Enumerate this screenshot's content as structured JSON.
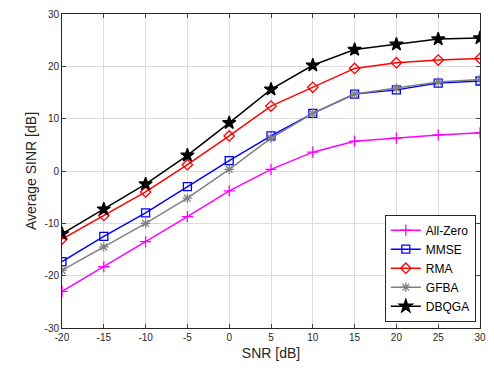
{
  "chart_data": {
    "type": "line",
    "x_label": "SNR [dB]",
    "y_label": "Average SINR [dB]",
    "x": [
      -20,
      -15,
      -10,
      -5,
      0,
      5,
      10,
      15,
      20,
      25,
      30
    ],
    "series": [
      {
        "name": "All-Zero",
        "color": "#ff00ff",
        "marker": "plus",
        "values": [
          -23,
          -18.3,
          -13.5,
          -8.7,
          -3.8,
          0.3,
          3.6,
          5.7,
          6.3,
          6.9,
          7.3
        ]
      },
      {
        "name": "MMSE",
        "color": "#0000ff",
        "marker": "square",
        "values": [
          -17.3,
          -12.5,
          -8,
          -3,
          2,
          6.7,
          11,
          14.7,
          15.5,
          16.8,
          17.2
        ]
      },
      {
        "name": "RMA",
        "color": "#ff0000",
        "marker": "diamond",
        "values": [
          -13,
          -8.5,
          -4,
          1.2,
          6.7,
          12.4,
          16,
          19.6,
          20.7,
          21.2,
          21.5
        ]
      },
      {
        "name": "GFBA",
        "color": "#808080",
        "marker": "asterisk",
        "values": [
          -19,
          -14.5,
          -10,
          -5.2,
          0.3,
          6.3,
          11,
          14.7,
          15.8,
          17,
          17.5
        ]
      },
      {
        "name": "DBQGA",
        "color": "#000000",
        "marker": "star",
        "values": [
          -12,
          -7.3,
          -2.5,
          3,
          9.2,
          15.6,
          20.2,
          23.2,
          24.2,
          25.2,
          25.4
        ]
      }
    ],
    "xlim": [
      -20,
      30
    ],
    "xticks": [
      -20,
      -15,
      -10,
      -5,
      0,
      5,
      10,
      15,
      20,
      25,
      30
    ],
    "ylim": [
      -30,
      30
    ],
    "yticks": [
      -30,
      -20,
      -10,
      0,
      10,
      20,
      30
    ],
    "grid": true,
    "legend": "lower right"
  }
}
